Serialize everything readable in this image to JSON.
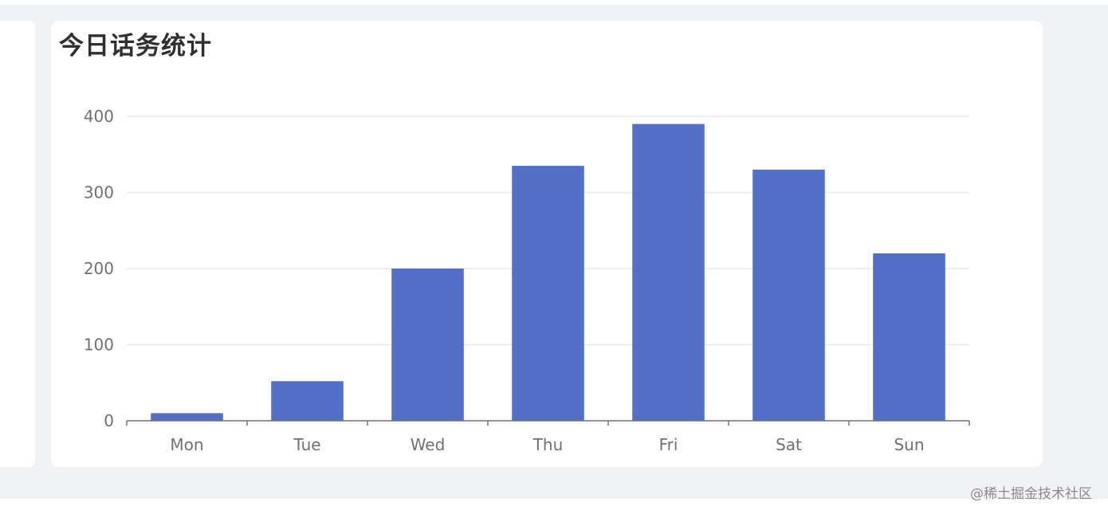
{
  "card": {
    "title": "今日话务统计"
  },
  "watermark": "@稀土掘金技术社区",
  "chart_data": {
    "type": "bar",
    "title": "今日话务统计",
    "categories": [
      "Mon",
      "Tue",
      "Wed",
      "Thu",
      "Fri",
      "Sat",
      "Sun"
    ],
    "values": [
      10,
      52,
      200,
      335,
      390,
      330,
      220
    ],
    "ylim": [
      0,
      400
    ],
    "yticks": [
      0,
      100,
      200,
      300,
      400
    ],
    "grid": true,
    "legend": "none",
    "bar_color": "#5470c6",
    "xlabel": "",
    "ylabel": ""
  }
}
